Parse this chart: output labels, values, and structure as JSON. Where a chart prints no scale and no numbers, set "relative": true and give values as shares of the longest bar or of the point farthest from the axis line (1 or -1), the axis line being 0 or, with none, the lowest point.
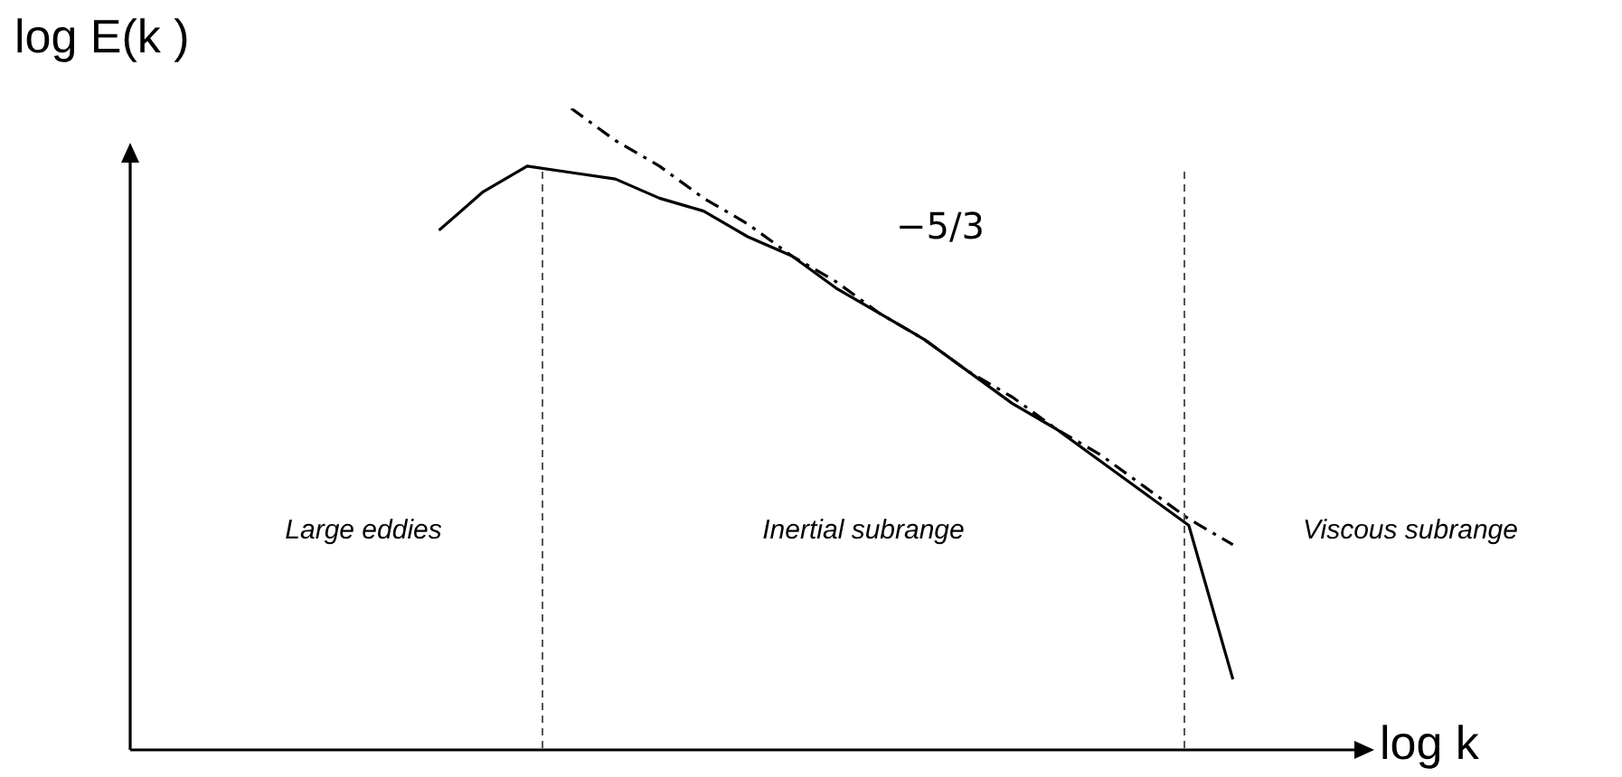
{
  "chart_data": {
    "type": "line",
    "relative": true,
    "xlabel": "log k",
    "ylabel": "log E(k )",
    "categories": [
      null,
      null,
      null,
      null,
      null,
      null,
      null,
      null,
      null,
      null,
      null,
      null,
      null,
      null,
      null,
      null,
      null,
      null,
      null,
      null,
      null,
      null,
      null,
      null,
      null,
      null,
      null,
      null,
      null
    ],
    "series": [
      {
        "color": "#000000",
        "values": [
          null,
          null,
          null,
          null,
          null,
          null,
          null,
          0.81,
          0.87,
          0.91,
          0.9,
          0.89,
          0.86,
          0.84,
          0.8,
          0.77,
          0.72,
          0.68,
          0.64,
          0.59,
          0.54,
          0.5,
          0.45,
          0.4,
          0.35,
          0.11,
          null,
          null,
          null
        ]
      },
      {
        "type": "line",
        "line_style": "dashed",
        "color": "#000000",
        "values": [
          null,
          null,
          null,
          null,
          null,
          null,
          null,
          null,
          null,
          null,
          1,
          0.95,
          0.91,
          0.86,
          0.82,
          0.77,
          0.73,
          0.68,
          0.64,
          0.59,
          0.55,
          0.5,
          0.46,
          0.41,
          0.36,
          0.32,
          null,
          null,
          null
        ]
      }
    ],
    "annotations": [
      "−5/3",
      "Large eddies",
      "Inertial subrange",
      "Viscous subrange"
    ],
    "grid": false,
    "legend": false,
    "marker": "none"
  }
}
